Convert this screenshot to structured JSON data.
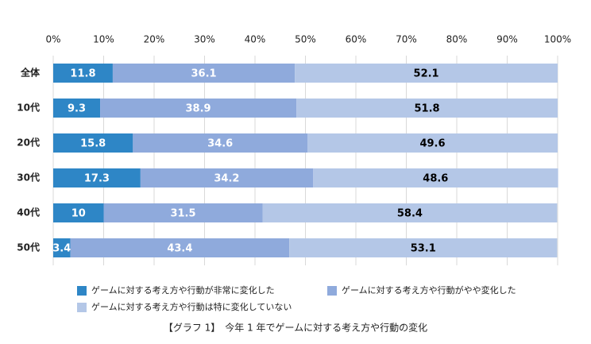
{
  "chart_data": {
    "type": "bar",
    "orientation": "horizontal",
    "stacked": true,
    "title": "【グラフ 1】　今年 1 年でゲームに対する考え方や行動の変化",
    "categories": [
      "全体",
      "10代",
      "20代",
      "30代",
      "40代",
      "50代"
    ],
    "series": [
      {
        "name": "ゲームに対する考え方や行動が非常に変化した",
        "color": "#2e86c6",
        "label_color": "#ffffff",
        "values": [
          11.8,
          9.3,
          15.8,
          17.3,
          10.0,
          3.4
        ]
      },
      {
        "name": "ゲームに対する考え方や行動がやや変化した",
        "color": "#8faadc",
        "label_color": "#ffffff",
        "values": [
          36.1,
          38.9,
          34.6,
          34.2,
          31.5,
          43.4
        ]
      },
      {
        "name": "ゲームに対する考え方や行動は特に変化していない",
        "color": "#b4c7e7",
        "label_color": "#000000",
        "values": [
          52.1,
          51.8,
          49.6,
          48.6,
          58.4,
          53.1
        ]
      }
    ],
    "xlim": [
      0,
      100
    ],
    "xticks": [
      {
        "value": 0,
        "label": "0%"
      },
      {
        "value": 10,
        "label": "10%"
      },
      {
        "value": 20,
        "label": "20%"
      },
      {
        "value": 30,
        "label": "30%"
      },
      {
        "value": 40,
        "label": "40%"
      },
      {
        "value": 50,
        "label": "50%"
      },
      {
        "value": 60,
        "label": "60%"
      },
      {
        "value": 70,
        "label": "70%"
      },
      {
        "value": 80,
        "label": "80%"
      },
      {
        "value": 90,
        "label": "90%"
      },
      {
        "value": 100,
        "label": "100%"
      }
    ],
    "grid": true
  }
}
